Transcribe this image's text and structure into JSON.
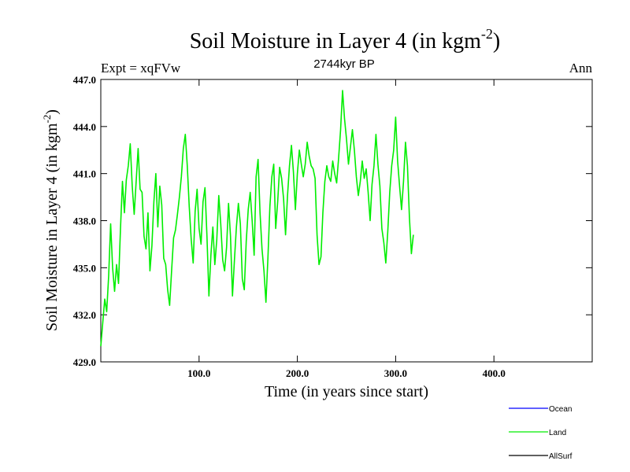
{
  "chart_data": {
    "type": "line",
    "title_main": "Soil Moisture in Layer 4 (in kgm",
    "title_sup": "-2",
    "title_close": ")",
    "subtitle_left": "Expt = xqFVw",
    "subtitle_center": "2744kyr BP",
    "subtitle_right": "Ann",
    "xlabel": "Time (in years since start)",
    "ylabel_main": "Soil Moisture in Layer 4 (in kgm",
    "ylabel_sup": "-2",
    "ylabel_close": ")",
    "xlim": [
      0,
      500
    ],
    "ylim": [
      429,
      447
    ],
    "xticks": [
      100,
      200,
      300,
      400
    ],
    "xtick_labels": [
      "100.0",
      "200.0",
      "300.0",
      "400.0"
    ],
    "yticks": [
      429,
      432,
      435,
      438,
      441,
      444,
      447
    ],
    "ytick_labels": [
      "429.0",
      "432.0",
      "435.0",
      "438.0",
      "441.0",
      "444.0",
      "447.0"
    ],
    "legend": [
      {
        "name": "Ocean",
        "color": "#0000ff"
      },
      {
        "name": "Land",
        "color": "#00ee00"
      },
      {
        "name": "AllSurf",
        "color": "#000000"
      }
    ],
    "series": [
      {
        "name": "Land",
        "color": "#00ee00",
        "x_start": 0,
        "x_step": 2,
        "values": [
          430.0,
          431.5,
          433.0,
          432.2,
          434.5,
          437.8,
          435.0,
          433.5,
          435.2,
          434.0,
          437.5,
          440.5,
          438.5,
          440.6,
          441.5,
          442.9,
          440.2,
          438.4,
          440.5,
          442.6,
          440.0,
          439.8,
          437.0,
          436.2,
          438.5,
          434.8,
          436.4,
          439.2,
          441.0,
          437.6,
          440.2,
          439.0,
          435.6,
          435.2,
          433.6,
          432.6,
          434.8,
          436.9,
          437.4,
          438.4,
          439.5,
          440.8,
          442.6,
          443.5,
          441.5,
          438.9,
          436.8,
          435.3,
          438.6,
          440.0,
          437.5,
          436.5,
          439.2,
          440.1,
          437.0,
          433.2,
          435.8,
          437.6,
          435.2,
          436.8,
          439.6,
          437.8,
          435.5,
          434.8,
          436.3,
          439.1,
          437.0,
          433.2,
          435.5,
          437.6,
          439.1,
          437.8,
          434.3,
          433.6,
          436.7,
          438.7,
          439.8,
          438.0,
          435.8,
          440.8,
          441.9,
          438.5,
          436.2,
          434.8,
          432.8,
          435.6,
          438.9,
          440.8,
          441.6,
          437.5,
          439.2,
          441.4,
          440.7,
          439.4,
          437.1,
          439.6,
          441.5,
          442.8,
          441.1,
          438.7,
          441.0,
          442.5,
          441.6,
          440.8,
          441.6,
          443.0,
          442.1,
          441.5,
          441.3,
          440.7,
          437.1,
          435.2,
          435.7,
          438.5,
          440.5,
          441.5,
          440.8,
          440.5,
          441.8,
          441.0,
          440.4,
          442.0,
          443.8,
          446.3,
          444.5,
          443.2,
          441.6,
          442.7,
          443.8,
          442.5,
          440.8,
          439.6,
          440.5,
          441.8,
          440.7,
          441.3,
          439.8,
          438.0,
          440.3,
          441.5,
          443.5,
          441.6,
          440.2,
          437.5,
          436.6,
          435.3,
          437.3,
          439.8,
          441.5,
          442.5,
          444.6,
          441.8,
          440.2,
          438.7,
          440.5,
          443.0,
          441.5,
          438.2,
          435.9,
          437.1
        ]
      }
    ]
  }
}
